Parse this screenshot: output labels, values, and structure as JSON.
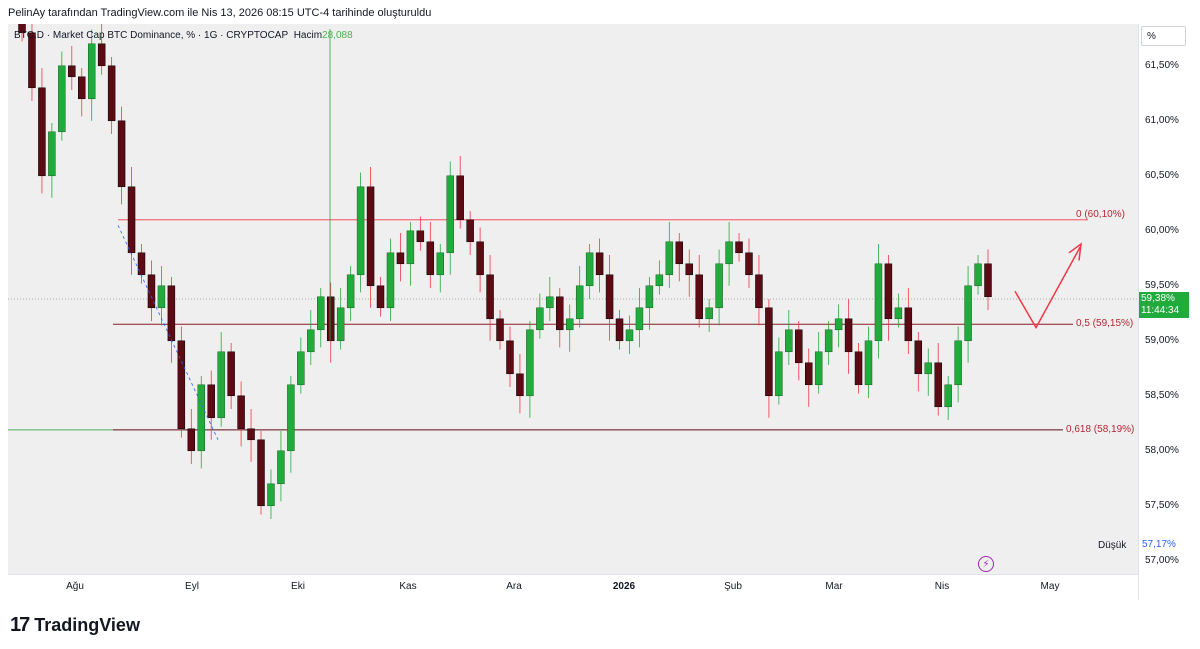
{
  "caption": "PelinAy tarafından TradingView.com ile Nis 13, 2026 08:15 UTC-4 tarihinde oluşturuldu",
  "legend": {
    "symbol": "BTC.D · Market Cap BTC Dominance, % · 1G · CRYPTOCAP",
    "volume_label": "Hacim",
    "volume_value": "28,088"
  },
  "unit": "%",
  "brand": {
    "logo": "17",
    "name": "TradingView"
  },
  "price_tag": {
    "value": "59,38%",
    "countdown": "11:44:34"
  },
  "low": {
    "label": "Düşük",
    "value": "57,17%"
  },
  "colors": {
    "up": "#22ab3d",
    "down": "#5c0a14",
    "fib": "#b22833",
    "green_line": "#4caf50",
    "arrow": "#f23645"
  },
  "chart_data": {
    "type": "candlestick",
    "title": "BTC.D · Market Cap BTC Dominance, % · 1G · CRYPTOCAP",
    "y_ticks": [
      "61,50%",
      "61,00%",
      "60,50%",
      "60,00%",
      "59,50%",
      "59,00%",
      "58,50%",
      "58,00%",
      "57,50%",
      "57,00%"
    ],
    "y_tick_values": [
      61.5,
      61.0,
      60.5,
      60.0,
      59.5,
      59.0,
      58.5,
      58.0,
      57.5,
      57.0
    ],
    "x_ticks": [
      "Ağu",
      "Eyl",
      "Eki",
      "Kas",
      "Ara",
      "2026",
      "Şub",
      "Mar",
      "Nis",
      "May"
    ],
    "ylim": [
      56.88,
      61.88
    ],
    "fib_levels": [
      {
        "label": "0 (60,10%)",
        "value": 60.1
      },
      {
        "label": "0,5 (59,15%)",
        "value": 59.15
      },
      {
        "label": "0,618 (58,19%)",
        "value": 58.19
      }
    ],
    "last_price": 59.38,
    "low": 57.17,
    "closes": [
      61.8,
      61.3,
      60.5,
      60.9,
      61.5,
      61.4,
      61.2,
      61.7,
      61.5,
      61.0,
      60.4,
      59.8,
      59.6,
      59.3,
      59.5,
      59.0,
      58.2,
      58.0,
      58.6,
      58.3,
      58.9,
      58.5,
      58.2,
      58.1,
      57.5,
      57.7,
      58.0,
      58.6,
      58.9,
      59.1,
      59.4,
      59.0,
      59.3,
      59.6,
      60.4,
      59.5,
      59.3,
      59.8,
      59.7,
      60.0,
      59.9,
      59.6,
      59.8,
      60.5,
      60.1,
      59.9,
      59.6,
      59.2,
      59.0,
      58.7,
      58.5,
      59.1,
      59.3,
      59.4,
      59.1,
      59.2,
      59.5,
      59.8,
      59.6,
      59.2,
      59.0,
      59.1,
      59.3,
      59.5,
      59.6,
      59.9,
      59.7,
      59.6,
      59.2,
      59.3,
      59.7,
      59.9,
      59.8,
      59.6,
      59.3,
      58.5,
      58.9,
      59.1,
      58.8,
      58.6,
      58.9,
      59.1,
      59.2,
      58.9,
      58.6,
      59.0,
      59.7,
      59.2,
      59.3,
      59.0,
      58.7,
      58.8,
      58.4,
      58.6,
      59.0,
      59.5,
      59.7,
      59.4
    ],
    "series": [
      {
        "name": "BTC.D",
        "type": "candle"
      }
    ]
  }
}
